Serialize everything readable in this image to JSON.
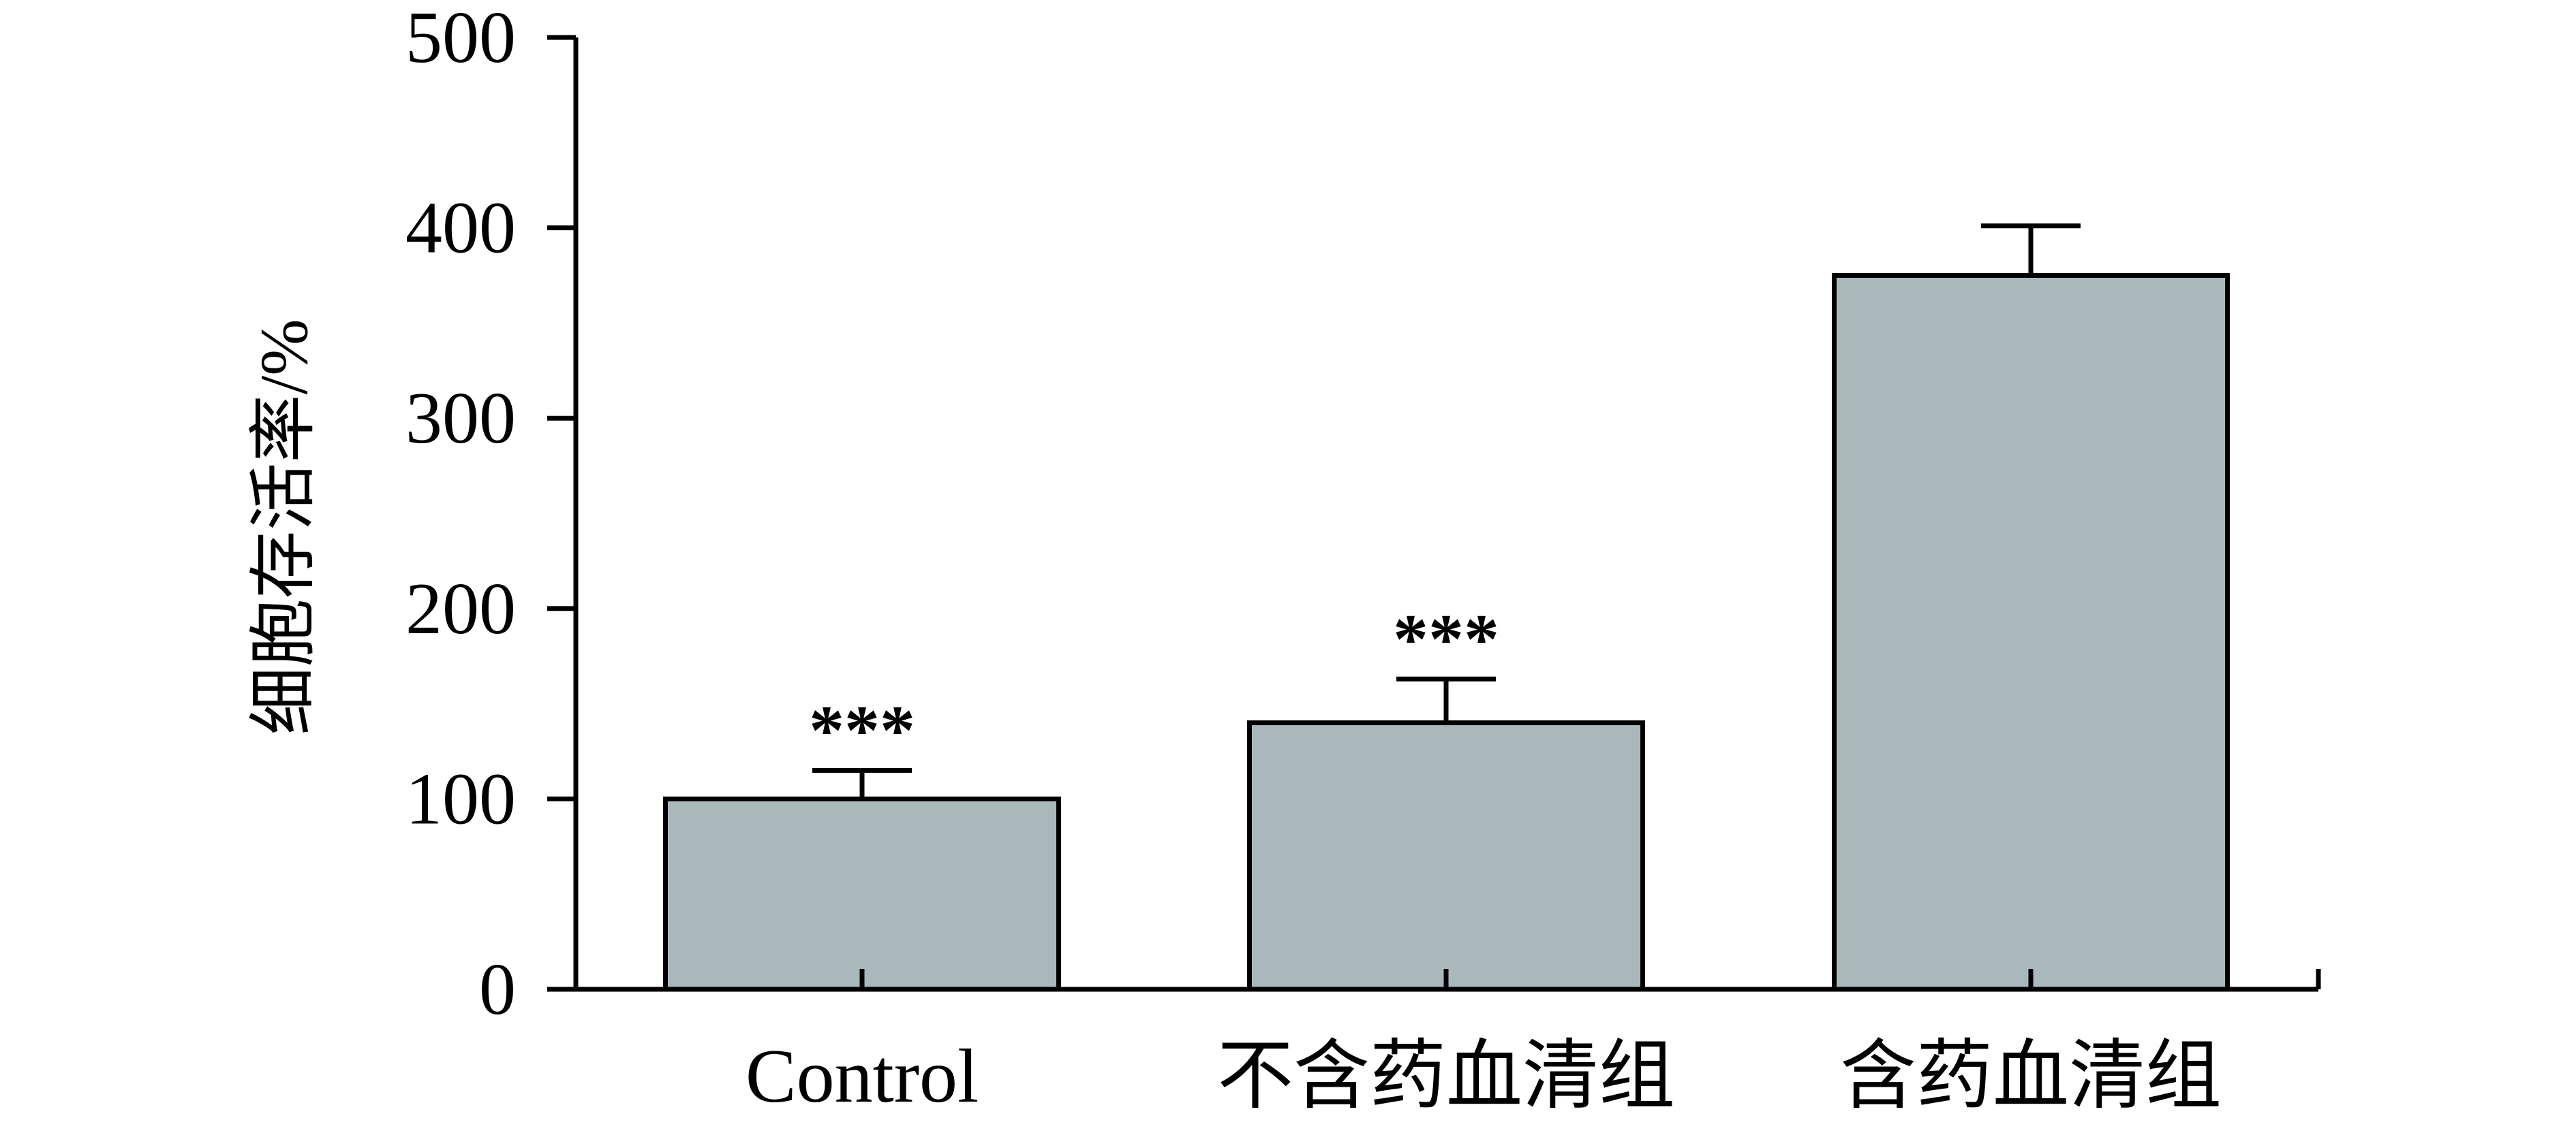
{
  "chart_data": {
    "type": "bar",
    "title": "",
    "xlabel": "",
    "ylabel": "细胞存活率/%",
    "ylim": [
      0,
      500
    ],
    "yticks": [
      "0",
      "100",
      "200",
      "300",
      "400",
      "500"
    ],
    "categories": [
      "Control",
      "不含药血清组",
      "含药血清组"
    ],
    "series": [
      {
        "values": [
          100,
          140,
          375
        ],
        "errors": [
          15,
          23,
          26
        ],
        "annotations": [
          "***",
          "***",
          ""
        ]
      }
    ],
    "grid": false,
    "legend": "none",
    "colors": {
      "bar_fill": "#a9b9bb",
      "stroke": "#000000"
    }
  }
}
